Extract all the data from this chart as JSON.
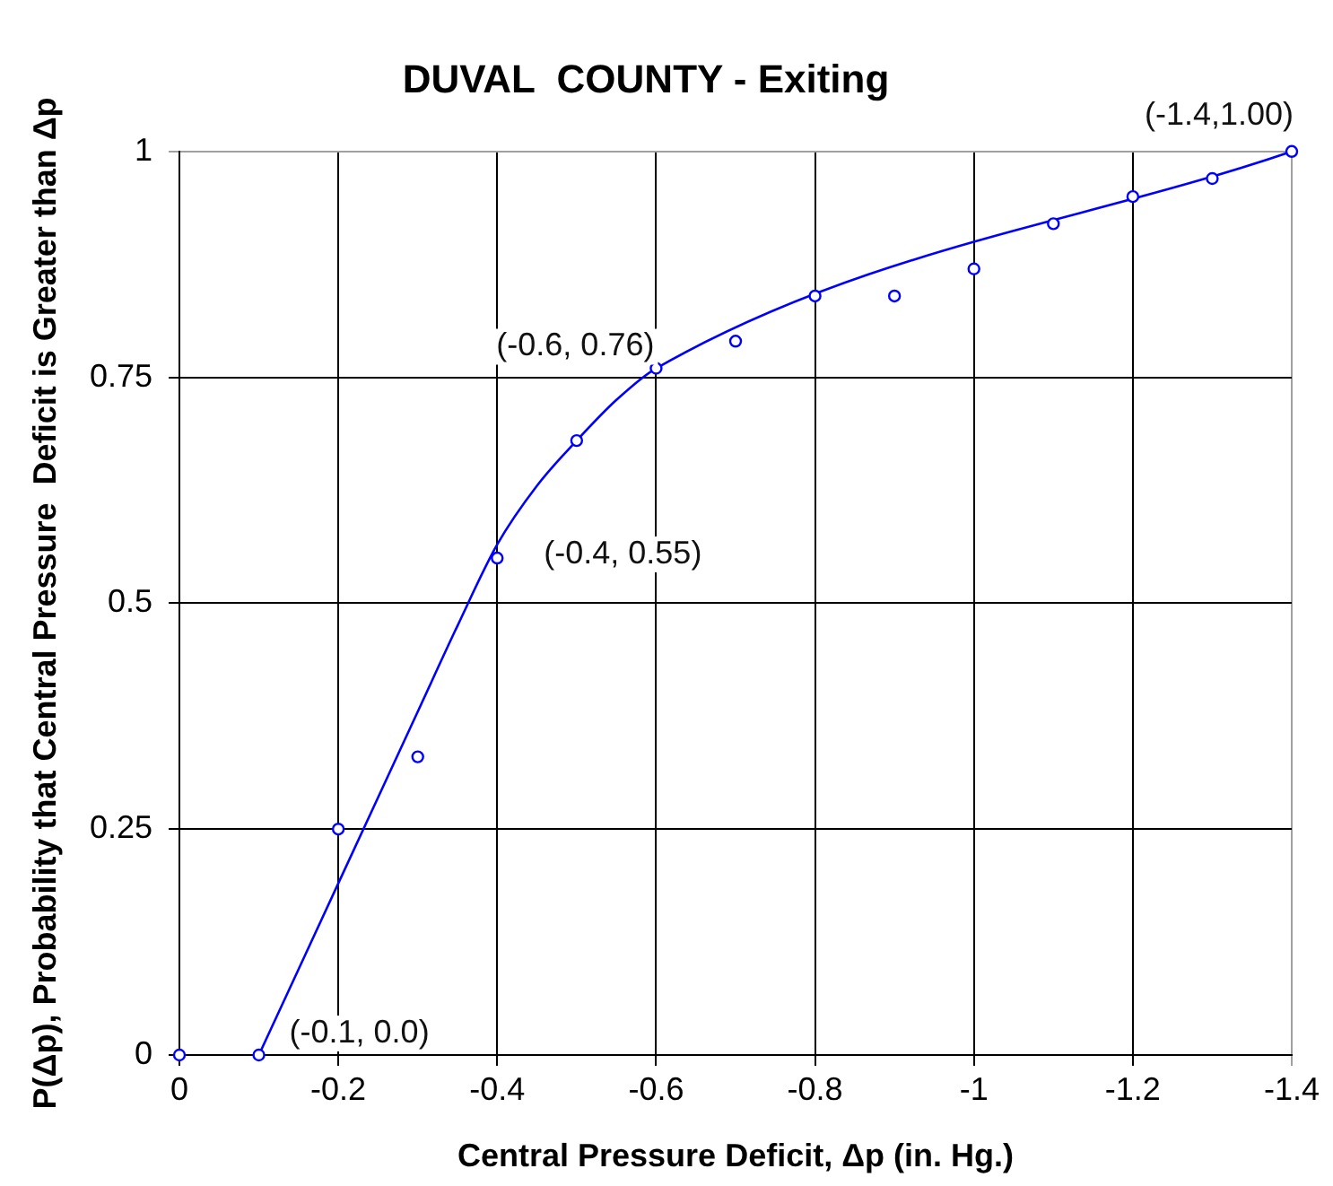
{
  "chart_data": {
    "type": "scatter",
    "title": "DUVAL  COUNTY - Exiting",
    "xlabel": "Central Pressure Deficit, Δp (in. Hg.)",
    "ylabel": "P(Δp), Probability that Central Pressure  Deficit is Greater than Δp",
    "series": [
      {
        "type": "scatter",
        "color": "#0000ff",
        "marker": "circle",
        "x": [
          0,
          -0.1,
          -0.2,
          -0.3,
          -0.4,
          -0.5,
          -0.6,
          -0.7,
          -0.8,
          -0.9,
          -1,
          -1.1,
          -1.2,
          -1.3,
          -1.4
        ],
        "values": [
          0,
          0,
          0.25,
          0.33,
          0.55,
          0.68,
          0.76,
          0.79,
          0.84,
          0.84,
          0.87,
          0.92,
          0.95,
          0.97,
          1
        ]
      },
      {
        "type": "line",
        "color": "#0000ff",
        "marker": "none",
        "x": [
          -0.1,
          -0.2,
          -0.3,
          -0.35,
          -0.4,
          -0.45,
          -0.5,
          -0.55,
          -0.6,
          -1.4
        ],
        "values": [
          0,
          0.19,
          0.38,
          0.475,
          0.565,
          0.63,
          0.68,
          0.725,
          0.76,
          1
        ]
      }
    ],
    "xlim": [
      0,
      -1.4
    ],
    "xticks": [
      0,
      -0.2,
      -0.4,
      -0.6,
      -0.8,
      -1,
      -1.2,
      -1.4
    ],
    "ylim": [
      0,
      1
    ],
    "yticks": [
      0,
      0.25,
      0.5,
      0.75,
      1
    ],
    "grid": true,
    "annotations": [
      {
        "text": "(-0.1, 0.0)",
        "x": -0.1,
        "y": 0
      },
      {
        "text": "(-0.4, 0.55)",
        "x": -0.4,
        "y": 0.55
      },
      {
        "text": "(-0.6, 0.76)",
        "x": -0.6,
        "y": 0.76
      },
      {
        "text": "(-1.4,1.00)",
        "x": -1.4,
        "y": 1
      }
    ]
  }
}
